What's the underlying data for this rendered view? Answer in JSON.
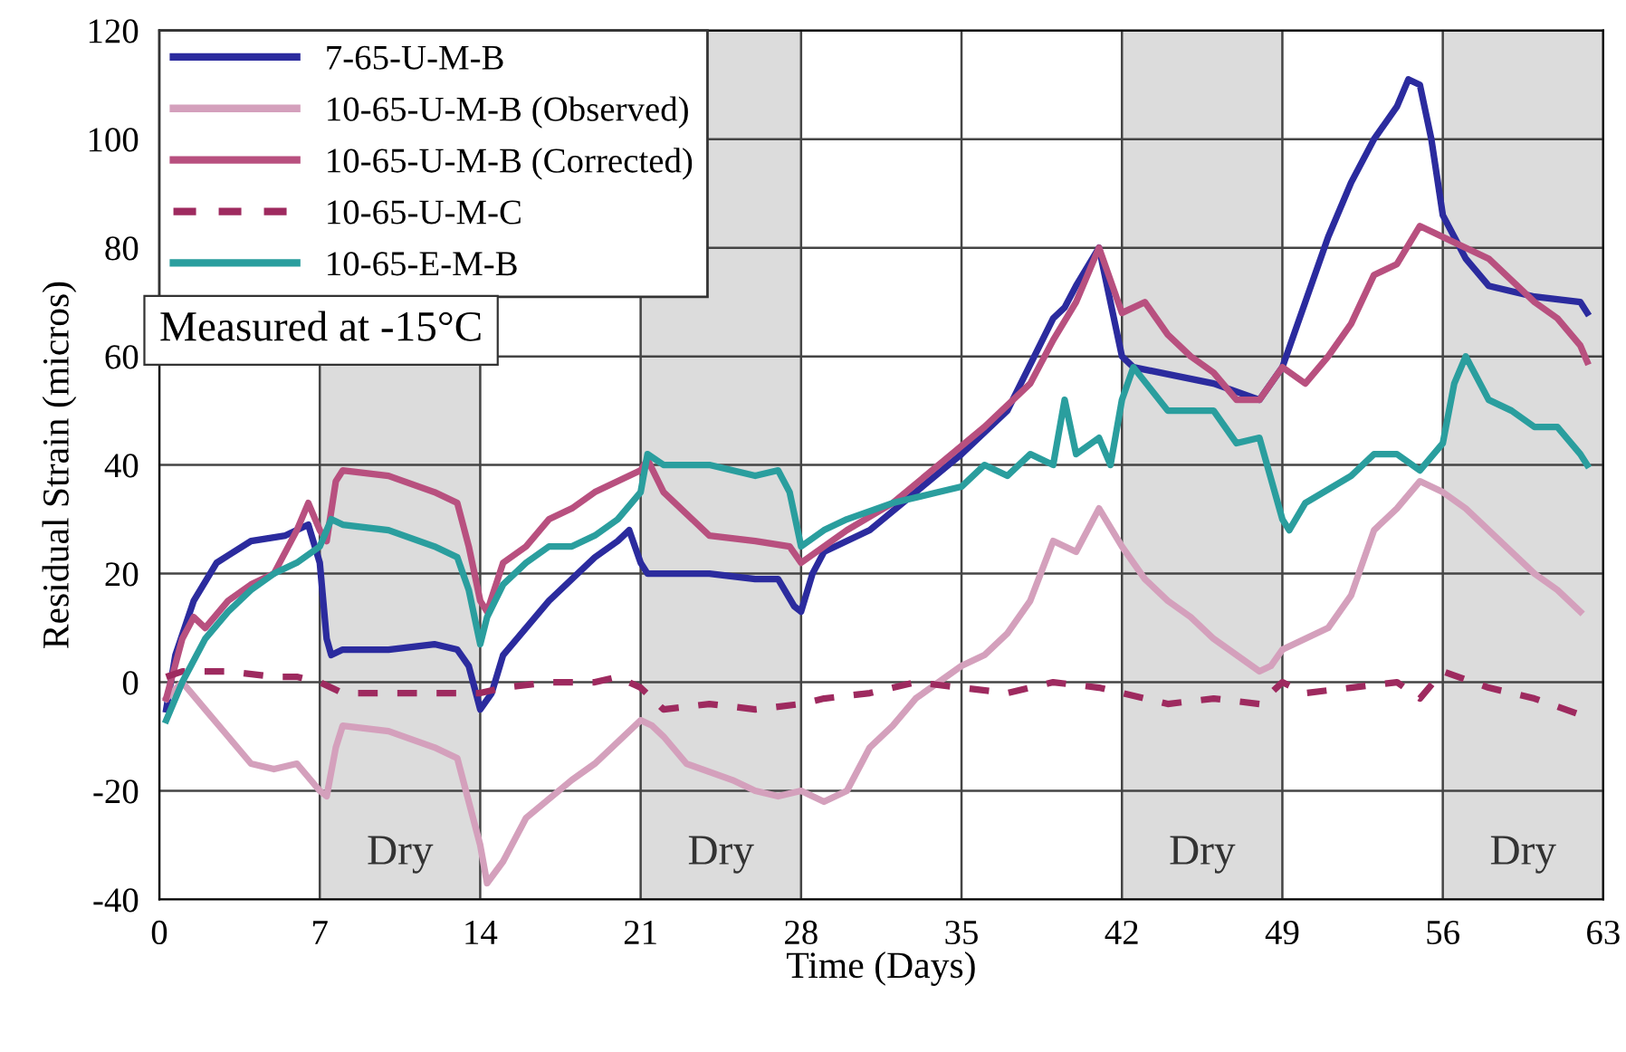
{
  "chart_data": {
    "type": "line",
    "xlabel": "Time (Days)",
    "ylabel": "Residual Strain (micros)",
    "xlim": [
      0,
      63
    ],
    "xticks": [
      0,
      7,
      14,
      21,
      28,
      35,
      42,
      49,
      56,
      63
    ],
    "ylim": [
      -40,
      120
    ],
    "yticks": [
      -40,
      -20,
      0,
      20,
      40,
      60,
      80,
      100,
      120
    ],
    "grid": true,
    "legend": "top left",
    "annotations": [
      "Measured at -15°C"
    ],
    "bands": [
      {
        "axis": "x",
        "from": 7,
        "to": 14,
        "label": "Dry",
        "color": "#dcdcdc"
      },
      {
        "axis": "x",
        "from": 21,
        "to": 28,
        "label": "Dry",
        "color": "#dcdcdc"
      },
      {
        "axis": "x",
        "from": 42,
        "to": 49,
        "label": "Dry",
        "color": "#dcdcdc"
      },
      {
        "axis": "x",
        "from": 56,
        "to": 63,
        "label": "Dry",
        "color": "#dcdcdc"
      }
    ],
    "series": [
      {
        "name": "7-65-U-M-B",
        "color": "#2b2b9e",
        "x": [
          0.3,
          0.7,
          1.5,
          2.5,
          4,
          5.5,
          6.5,
          7,
          7.3,
          7.5,
          8,
          10,
          12,
          13,
          13.5,
          14,
          14.5,
          15,
          16,
          17,
          18,
          19,
          20,
          20.5,
          21,
          21.3,
          24,
          26,
          27,
          27.7,
          28,
          28.5,
          29,
          31,
          33,
          35,
          37,
          39,
          39.5,
          40,
          41,
          41.2,
          41.5,
          42,
          42.5,
          46,
          48,
          49,
          50,
          51,
          52,
          53,
          54,
          54.5,
          55,
          55.5,
          56,
          57,
          58,
          60,
          62,
          62.3
        ],
        "values": [
          -5,
          5,
          15,
          22,
          26,
          27,
          29,
          22,
          8,
          5,
          6,
          6,
          7,
          6,
          3,
          -5,
          -2,
          5,
          10,
          15,
          19,
          23,
          26,
          28,
          22,
          20,
          20,
          19,
          19,
          14,
          13,
          20,
          24,
          28,
          35,
          42,
          50,
          67,
          69,
          73,
          80,
          76,
          70,
          60,
          58,
          55,
          52,
          58,
          70,
          82,
          92,
          100,
          106,
          111,
          110,
          100,
          86,
          78,
          73,
          71,
          70,
          68
        ]
      },
      {
        "name": "10-65-U-M-B (Observed)",
        "color": "#d4a0bc",
        "x": [
          0.3,
          1,
          2,
          3,
          4,
          5,
          6,
          7,
          7.3,
          7.7,
          8,
          10,
          12,
          13,
          14,
          14.3,
          15,
          16,
          18,
          19,
          20,
          21,
          21.5,
          22,
          23,
          25,
          26,
          27,
          28,
          29,
          30,
          31,
          32,
          33,
          34,
          35,
          36,
          37,
          38,
          39,
          40,
          41,
          42,
          43,
          44,
          45,
          46,
          47,
          48,
          48.5,
          49,
          50,
          51,
          52,
          53,
          54,
          55,
          56,
          57,
          58,
          60,
          61,
          62
        ],
        "values": [
          -3,
          0,
          -5,
          -10,
          -15,
          -16,
          -15,
          -20,
          -21,
          -12,
          -8,
          -9,
          -12,
          -14,
          -30,
          -37,
          -33,
          -25,
          -18,
          -15,
          -11,
          -7,
          -8,
          -10,
          -15,
          -18,
          -20,
          -21,
          -20,
          -22,
          -20,
          -12,
          -8,
          -3,
          0,
          3,
          5,
          9,
          15,
          26,
          24,
          32,
          25,
          19,
          15,
          12,
          8,
          5,
          2,
          3,
          6,
          8,
          10,
          16,
          28,
          32,
          37,
          35,
          32,
          28,
          20,
          17,
          13
        ]
      },
      {
        "name": "10-65-U-M-B (Corrected)",
        "color": "#b8507f",
        "x": [
          0.3,
          1,
          1.5,
          2,
          3,
          4,
          5,
          6,
          6.5,
          7,
          7.3,
          7.7,
          8,
          10,
          12,
          13,
          13.5,
          14,
          14.3,
          15,
          16,
          17,
          18,
          19,
          20,
          21,
          21.3,
          22,
          23,
          24,
          26,
          27.5,
          28,
          29,
          30,
          32,
          34,
          36,
          38,
          39,
          40,
          41,
          42,
          43,
          44,
          45,
          46,
          47,
          48,
          49,
          50,
          51,
          52,
          53,
          54,
          55,
          56,
          58,
          60,
          61,
          62,
          62.3
        ],
        "values": [
          -3,
          8,
          12,
          10,
          15,
          18,
          20,
          28,
          33,
          28,
          26,
          37,
          39,
          38,
          35,
          33,
          25,
          15,
          13,
          22,
          25,
          30,
          32,
          35,
          37,
          39,
          41,
          35,
          31,
          27,
          26,
          25,
          22,
          25,
          28,
          33,
          40,
          47,
          55,
          63,
          70,
          80,
          68,
          70,
          64,
          60,
          57,
          52,
          52,
          58,
          55,
          60,
          66,
          75,
          77,
          84,
          82,
          78,
          70,
          67,
          62,
          59
        ]
      },
      {
        "name": "10-65-U-M-C",
        "color": "#9e2a5f",
        "line_style": "dashed",
        "x": [
          0.3,
          1,
          3,
          5,
          6,
          7,
          8,
          10,
          12,
          14,
          15,
          17,
          19,
          20,
          21,
          22,
          24,
          26,
          28,
          29,
          31,
          33,
          35,
          37,
          39,
          41,
          42,
          44,
          46,
          48,
          49,
          50,
          52,
          54,
          55,
          56,
          58,
          60,
          62
        ],
        "values": [
          1,
          2,
          2,
          1,
          1,
          0,
          -2,
          -2,
          -2,
          -2,
          -1,
          0,
          0,
          1,
          -1,
          -5,
          -4,
          -5,
          -4,
          -3,
          -2,
          0,
          -1,
          -2,
          0,
          -1,
          -2,
          -4,
          -3,
          -4,
          0,
          -2,
          -1,
          0,
          -3,
          2,
          -1,
          -3,
          -6
        ]
      },
      {
        "name": "10-65-E-M-B",
        "color": "#2a9e9e",
        "x": [
          0.3,
          1,
          2,
          3,
          4,
          5,
          6,
          7,
          7.5,
          8,
          10,
          12,
          13,
          13.5,
          14,
          14.3,
          15,
          16,
          17,
          18,
          19,
          20,
          21,
          21.3,
          22,
          24,
          26,
          27,
          27.5,
          28,
          29,
          30,
          32,
          34,
          35,
          36,
          37,
          38,
          39,
          39.5,
          40,
          41,
          41.5,
          42,
          42.5,
          44,
          46,
          47,
          48,
          49,
          49.3,
          50,
          52,
          53,
          54,
          55,
          56,
          56.5,
          57,
          58,
          59,
          60,
          61,
          62,
          62.3
        ],
        "values": [
          -7,
          0,
          8,
          13,
          17,
          20,
          22,
          25,
          30,
          29,
          28,
          25,
          23,
          17,
          7,
          12,
          18,
          22,
          25,
          25,
          27,
          30,
          35,
          42,
          40,
          40,
          38,
          39,
          35,
          25,
          28,
          30,
          33,
          35,
          36,
          40,
          38,
          42,
          40,
          52,
          42,
          45,
          40,
          52,
          58,
          50,
          50,
          44,
          45,
          30,
          28,
          33,
          38,
          42,
          42,
          39,
          44,
          55,
          60,
          52,
          50,
          47,
          47,
          42,
          40
        ]
      }
    ]
  }
}
